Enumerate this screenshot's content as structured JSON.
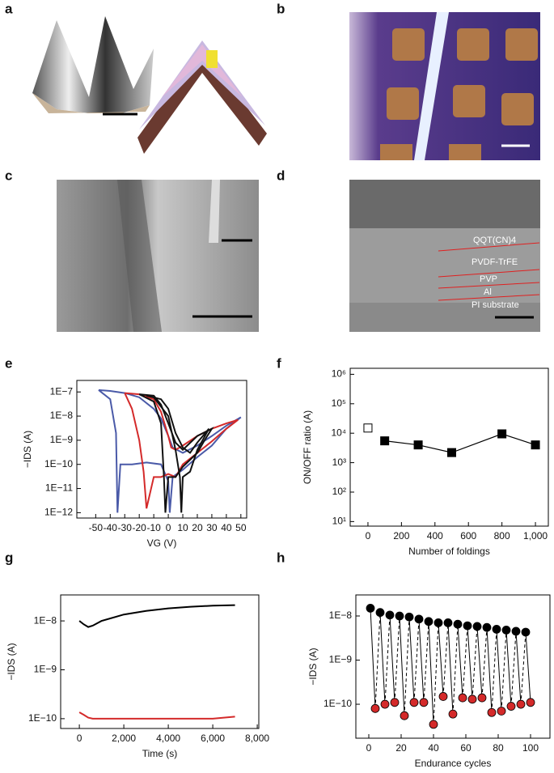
{
  "panel_labels": [
    "a",
    "b",
    "c",
    "d",
    "e",
    "f",
    "g",
    "h"
  ],
  "image_labels": [
    "QQT(CN)4",
    "PVDF-TrFE",
    "PVP",
    "Al",
    "PI substrate"
  ],
  "chart_data": [
    {
      "type": "line",
      "xlabel": "VG (V)",
      "ylabel": "−IDS (A)",
      "ylog": true,
      "xlim": [
        -63,
        54
      ],
      "ylim": [
        6e-13,
        3e-07
      ],
      "xticks": [
        -50,
        -40,
        -30,
        -20,
        -10,
        0,
        10,
        20,
        30,
        40,
        50
      ],
      "yticks": [
        {
          "value": 1e-07,
          "label": "1E−7"
        },
        {
          "value": 1e-08,
          "label": "1E−8"
        },
        {
          "value": 1e-09,
          "label": "1E−9"
        },
        {
          "value": 1e-10,
          "label": "1E−10"
        },
        {
          "value": 1e-11,
          "label": "1E−11"
        },
        {
          "value": 1e-12,
          "label": "1E−12"
        }
      ],
      "series": [
        {
          "color": "#4a5aa8",
          "x": [
            -48,
            -40,
            -30,
            -20,
            -10,
            -5,
            0,
            3,
            10,
            20,
            30,
            40,
            50,
            50,
            40,
            30,
            20,
            10,
            3,
            1,
            0,
            -5,
            -15,
            -25,
            -33,
            -35,
            -36,
            -40,
            -48
          ],
          "values": [
            1.2e-07,
            1.1e-07,
            9e-08,
            6e-08,
            2e-08,
            8e-09,
            1.5e-09,
            5e-10,
            3e-10,
            6e-10,
            1.5e-09,
            4e-09,
            9e-09,
            9e-09,
            3e-09,
            6e-10,
            2e-10,
            6e-11,
            3e-11,
            1e-12,
            2e-11,
            1e-10,
            1.2e-10,
            1e-10,
            1e-10,
            1e-12,
            2e-09,
            5e-08,
            1.2e-07
          ]
        },
        {
          "color": "#d42a2a",
          "x": [
            -30,
            -20,
            -10,
            -5,
            0,
            2,
            5,
            10,
            20,
            30,
            40,
            48,
            48,
            40,
            30,
            20,
            10,
            5,
            0,
            -5,
            -10,
            -15,
            -17,
            -20,
            -25,
            -30
          ],
          "values": [
            9e-08,
            8e-08,
            5e-08,
            1.5e-08,
            1.5e-09,
            5e-10,
            4e-10,
            6e-10,
            1.5e-09,
            3e-09,
            5e-09,
            7e-09,
            7e-09,
            3e-09,
            9e-10,
            3e-10,
            1e-10,
            3e-11,
            4e-11,
            3e-11,
            3e-11,
            1.5e-12,
            5e-11,
            1e-09,
            2e-08,
            9e-08
          ]
        },
        {
          "color": "#111111",
          "x": [
            -20,
            -10,
            -5,
            0,
            5,
            10,
            20,
            30,
            30,
            25,
            20,
            10,
            5,
            0,
            -2,
            -3,
            -5,
            -10,
            -20
          ],
          "values": [
            8e-08,
            7e-08,
            3e-08,
            5e-09,
            8e-10,
            4e-10,
            1.5e-09,
            3e-09,
            3e-09,
            1e-09,
            3e-10,
            8e-11,
            3e-11,
            3e-11,
            1e-12,
            3e-11,
            5e-09,
            4e-08,
            8e-08
          ]
        },
        {
          "color": "#111111",
          "x": [
            -15,
            -5,
            0,
            5,
            10,
            15,
            20,
            28,
            28,
            20,
            15,
            10,
            9,
            8,
            5,
            0,
            -10,
            -15
          ],
          "values": [
            7e-08,
            5e-08,
            2e-08,
            2e-09,
            5e-10,
            3e-10,
            8e-10,
            3e-09,
            3e-09,
            4e-10,
            5e-11,
            3e-11,
            1e-12,
            3e-11,
            4e-10,
            1e-08,
            6e-08,
            7e-08
          ]
        }
      ]
    },
    {
      "type": "line",
      "xlabel": "Number of foldings",
      "ylabel": "ON/OFF ratio (A)",
      "ylog": true,
      "xlim": [
        -106,
        1077
      ],
      "ylim": [
        7,
        1600000
      ],
      "xticks": [
        0,
        200,
        400,
        600,
        800,
        {
          "value": 1000,
          "label": "1,000"
        }
      ],
      "yticks": [
        {
          "value": 1000000,
          "label": "10⁶"
        },
        {
          "value": 100000,
          "label": "10⁵"
        },
        {
          "value": 10000,
          "label": "10⁴"
        },
        {
          "value": 1000,
          "label": "10³"
        },
        {
          "value": 100,
          "label": "10²"
        },
        {
          "value": 10,
          "label": "10¹"
        }
      ],
      "series": [
        {
          "color": "#000000",
          "marker": "square",
          "filled": false,
          "line": false,
          "x": [
            0
          ],
          "values": [
            15000
          ]
        },
        {
          "color": "#000000",
          "marker": "square",
          "filled": true,
          "line": true,
          "x": [
            100,
            300,
            500,
            800,
            1000
          ],
          "values": [
            5500,
            4000,
            2200,
            9500,
            4000
          ]
        }
      ]
    },
    {
      "type": "line",
      "xlabel": "Time (s)",
      "ylabel": "−IDS (A)",
      "ylog": true,
      "xlim": [
        -840,
        8070
      ],
      "ylim": [
        6.3e-11,
        3.4e-08
      ],
      "xticks": [
        0,
        {
          "value": 2000,
          "label": "2,000"
        },
        {
          "value": 4000,
          "label": "4,000"
        },
        {
          "value": 6000,
          "label": "6,000"
        },
        {
          "value": 8000,
          "label": "8,000"
        }
      ],
      "yticks": [
        {
          "value": 1e-08,
          "label": "1E−8"
        },
        {
          "value": 1e-09,
          "label": "1E−9"
        },
        {
          "value": 1e-10,
          "label": "1E−10"
        }
      ],
      "series": [
        {
          "color": "#000000",
          "x": [
            0,
            200,
            400,
            600,
            1000,
            2000,
            3000,
            4000,
            5000,
            6000,
            7000
          ],
          "values": [
            1e-08,
            8.5e-09,
            7.5e-09,
            8e-09,
            1e-08,
            1.35e-08,
            1.6e-08,
            1.8e-08,
            1.95e-08,
            2.05e-08,
            2.1e-08
          ]
        },
        {
          "color": "#d42a2a",
          "x": [
            0,
            200,
            400,
            600,
            1000,
            2000,
            3000,
            4000,
            5000,
            6000,
            7000
          ],
          "values": [
            1.35e-10,
            1.2e-10,
            1.05e-10,
            1e-10,
            1e-10,
            1e-10,
            1e-10,
            1e-10,
            1e-10,
            1e-10,
            1.1e-10
          ]
        }
      ]
    },
    {
      "type": "scatter",
      "xlabel": "Endurance cycles",
      "ylabel": "−IDS (A)",
      "ylog": true,
      "connectors": true,
      "xlim": [
        -8,
        112
      ],
      "ylim": [
        1.7e-11,
        3e-08
      ],
      "xticks": [
        0,
        20,
        40,
        60,
        80,
        100
      ],
      "yticks": [
        {
          "value": 1e-08,
          "label": "1E−8"
        },
        {
          "value": 1e-09,
          "label": "1E−9"
        },
        {
          "value": 1e-10,
          "label": "1E−10"
        }
      ],
      "series": [
        {
          "color": "#000000",
          "x": [
            1,
            7,
            13,
            19,
            25,
            31,
            37,
            43,
            49,
            55,
            61,
            67,
            73,
            79,
            85,
            91,
            97
          ],
          "values": [
            1.5e-08,
            1.2e-08,
            1.05e-08,
            1e-08,
            9.5e-09,
            8.5e-09,
            7.5e-09,
            7e-09,
            7e-09,
            6.5e-09,
            6e-09,
            5.8e-09,
            5.5e-09,
            5e-09,
            4.8e-09,
            4.5e-09,
            4.3e-09
          ]
        },
        {
          "color": "#d42a2a",
          "x": [
            4,
            10,
            16,
            22,
            28,
            34,
            40,
            46,
            52,
            58,
            64,
            70,
            76,
            82,
            88,
            94,
            100
          ],
          "values": [
            8e-11,
            1e-10,
            1.1e-10,
            5.5e-11,
            1.1e-10,
            1.1e-10,
            3.5e-11,
            1.5e-10,
            6e-11,
            1.4e-10,
            1.3e-10,
            1.4e-10,
            6.5e-11,
            7e-11,
            9e-11,
            1e-10,
            1.1e-10
          ]
        }
      ]
    }
  ]
}
